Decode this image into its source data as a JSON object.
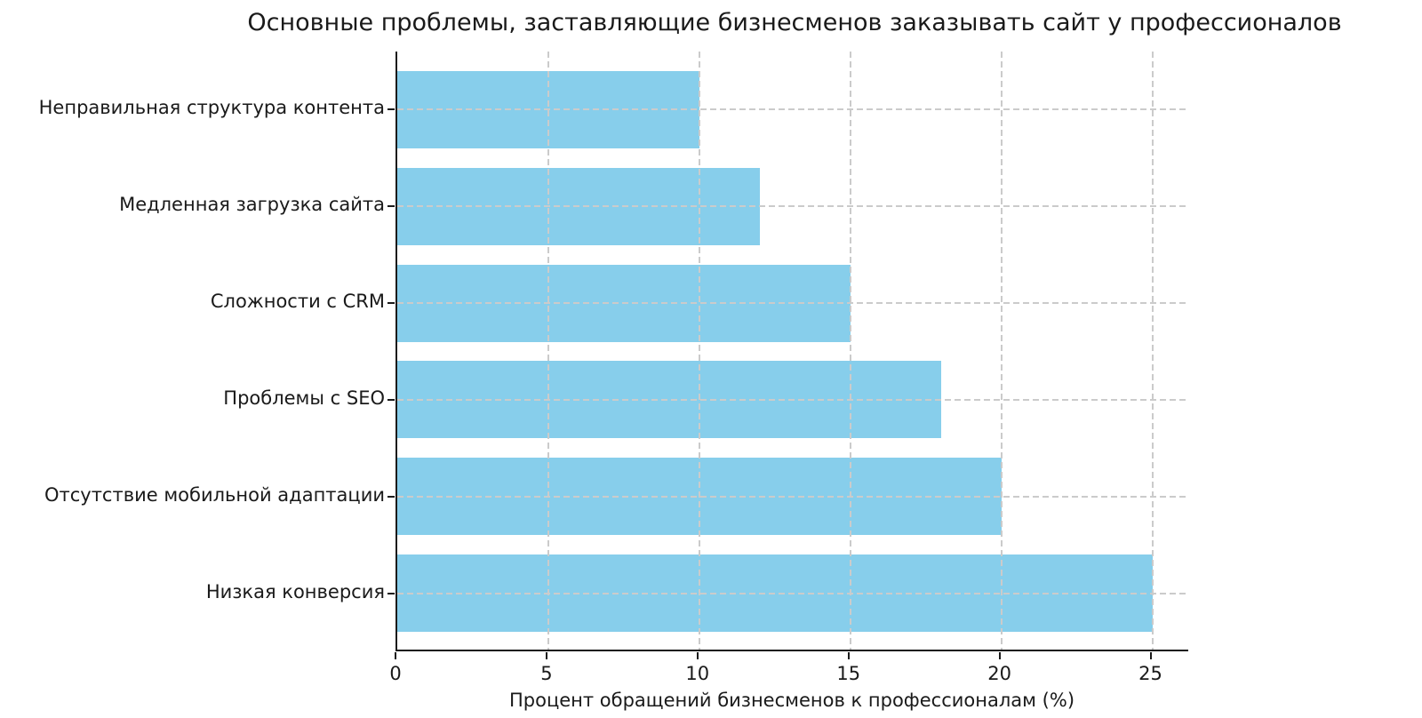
{
  "chart_data": {
    "type": "bar",
    "orientation": "horizontal",
    "title": "Основные проблемы, заставляющие бизнесменов заказывать сайт у профессионалов",
    "xlabel": "Процент обращений бизнесменов к профессионалам (%)",
    "ylabel": "",
    "categories": [
      "Неправильная структура контента",
      "Медленная загрузка сайта",
      "Сложности с CRM",
      "Проблемы с SEO",
      "Отсутствие мобильной адаптации",
      "Низкая конверсия"
    ],
    "values": [
      10,
      12,
      15,
      18,
      20,
      25
    ],
    "x_ticks": [
      0,
      5,
      10,
      15,
      20,
      25
    ],
    "xlim": [
      0,
      26.25
    ],
    "grid": "both-dashed",
    "legend": "none",
    "colors": {
      "bar": "#87CEEB",
      "grid": "#cbcbcb",
      "text": "#1a1a1a",
      "spine": "#1a1a1a",
      "background": "#ffffff"
    }
  }
}
